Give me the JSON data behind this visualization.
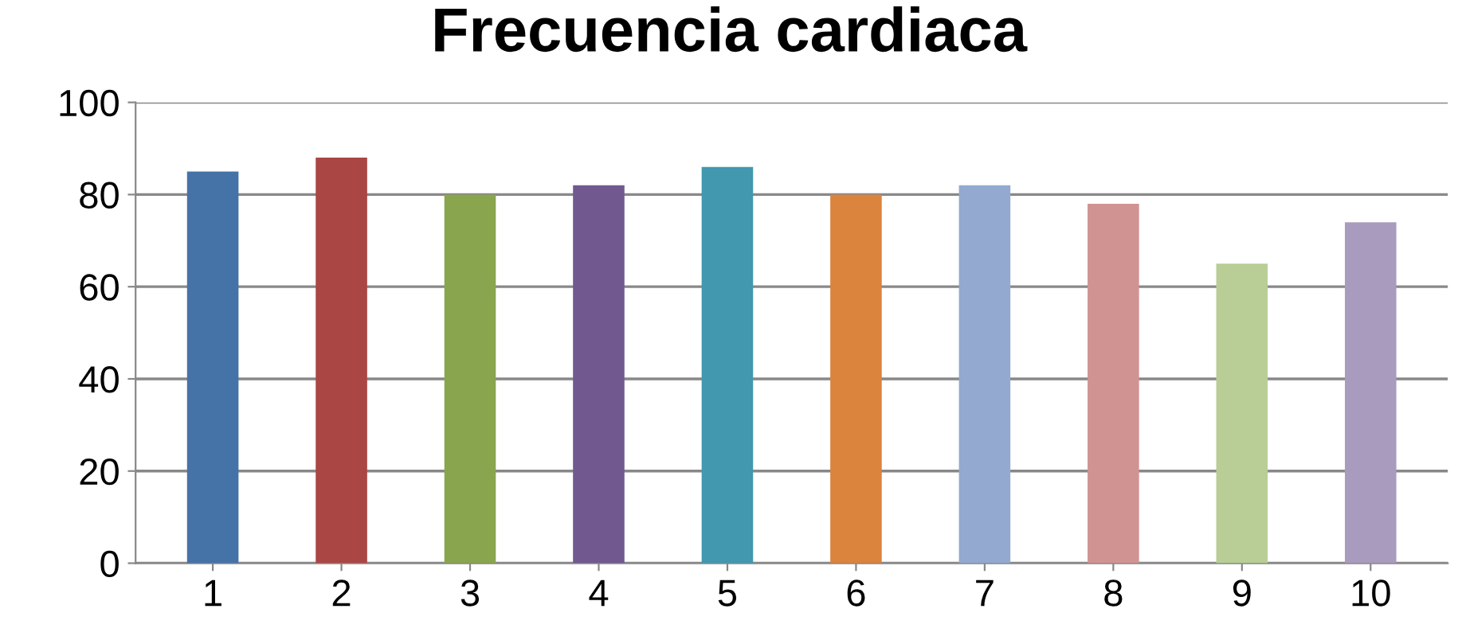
{
  "chart_data": {
    "type": "bar",
    "title": "Frecuencia cardiaca",
    "categories": [
      "1",
      "2",
      "3",
      "4",
      "5",
      "6",
      "7",
      "8",
      "9",
      "10"
    ],
    "values": [
      85,
      88,
      80,
      82,
      86,
      80,
      82,
      78,
      65,
      74
    ],
    "colors": [
      "#4572a7",
      "#aa4643",
      "#89a54e",
      "#71588f",
      "#4198af",
      "#db843d",
      "#93a9cf",
      "#d19392",
      "#b9cd96",
      "#a99bbd"
    ],
    "ylim": [
      0,
      100
    ],
    "yticks": [
      0,
      20,
      40,
      60,
      80,
      100
    ],
    "grid": "y"
  }
}
